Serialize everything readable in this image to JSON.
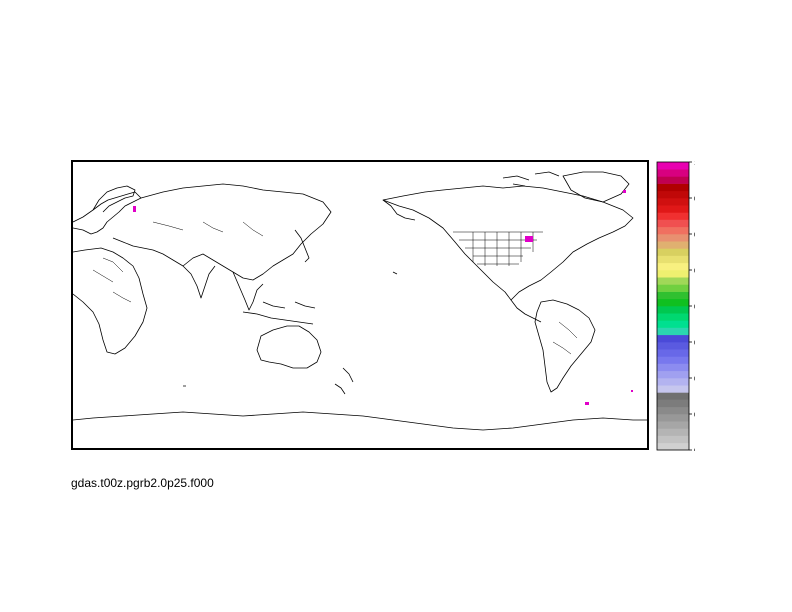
{
  "filename": "gdas.t00z.pgrb2.0p25.f000",
  "colorbar": {
    "min": 0,
    "max": 1,
    "tick_labels": [
      "0",
      "0.125",
      "0.25",
      "0.375",
      "0.5",
      "0.625",
      "0.75",
      "0.875",
      "1"
    ],
    "colors": [
      "#d0d0d0",
      "#c2c2c2",
      "#b4b4b4",
      "#a6a6a6",
      "#989898",
      "#8a8a8a",
      "#7c7c7c",
      "#707070",
      "#c6c6ee",
      "#b3b3f0",
      "#a0a0f0",
      "#8c8cf0",
      "#7878ee",
      "#6868e8",
      "#5a5ae0",
      "#4a4ad8",
      "#2bd6b0",
      "#00e090",
      "#00d870",
      "#00c850",
      "#10c020",
      "#30c030",
      "#70d040",
      "#a0d858",
      "#eef070",
      "#f8f080",
      "#e8e070",
      "#d8d060",
      "#e0b070",
      "#e89070",
      "#f07060",
      "#f05050",
      "#f03030",
      "#e01818",
      "#d01010",
      "#c00808",
      "#b00000",
      "#c00050",
      "#d80080",
      "#e800b0"
    ]
  },
  "highlight_color": "#e000c8"
}
